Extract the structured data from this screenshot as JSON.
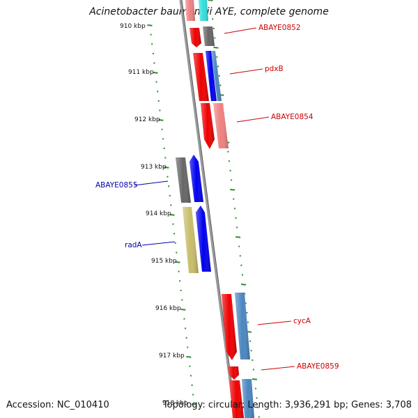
{
  "title": "Acinetobacter baumannii AYE, complete genome",
  "footer": {
    "accession": "Accession: NC_010410",
    "stats": "Topology: circular; Length: 3,936,291 bp; Genes: 3,708"
  },
  "ticks": {
    "kbp_start": 910,
    "labels": [
      "910 kbp",
      "911 kbp",
      "912 kbp",
      "913 kbp",
      "914 kbp",
      "915 kbp",
      "916 kbp",
      "917 kbp",
      "918 kbp"
    ]
  },
  "gene_labels": [
    {
      "text": "ABAYE0852",
      "color": "#cc0000"
    },
    {
      "text": "pdxB",
      "color": "#cc0000"
    },
    {
      "text": "ABAYE0854",
      "color": "#cc0000"
    },
    {
      "text": "ABAYE0855",
      "color": "#0000aa"
    },
    {
      "text": "radA",
      "color": "#0000aa"
    },
    {
      "text": "cycA",
      "color": "#cc0000"
    },
    {
      "text": "ABAYE0859",
      "color": "#cc0000"
    }
  ],
  "colors": {
    "backbone": "#9a9a9a",
    "tick": "#2e8b2e",
    "red": "#ee0000",
    "pink": "#f08080",
    "gray": "#666666",
    "blue": "#0000ee",
    "steel": "#4a86c0",
    "khaki": "#c8bd6a",
    "cyan": "#33dddd"
  }
}
